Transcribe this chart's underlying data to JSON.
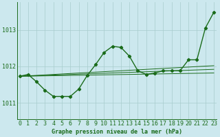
{
  "title": "Graphe pression niveau de la mer (hPa)",
  "background_color": "#cce8ee",
  "line_color": "#1a6b1a",
  "grid_color": "#a8cccc",
  "xlabel_fontsize": 6,
  "ylabel_fontsize": 6,
  "yticks": [
    1011,
    1012,
    1013
  ],
  "xticks": [
    0,
    1,
    2,
    3,
    4,
    5,
    6,
    7,
    8,
    9,
    10,
    11,
    12,
    13,
    14,
    15,
    16,
    17,
    18,
    19,
    20,
    21,
    22,
    23
  ],
  "ylim": [
    1010.55,
    1013.75
  ],
  "xlim": [
    -0.3,
    23.3
  ],
  "main_series": {
    "x": [
      0,
      1,
      2,
      3,
      4,
      5,
      6,
      7,
      8,
      9,
      10,
      11,
      12,
      13,
      14,
      15,
      16,
      17,
      18,
      19,
      20,
      21,
      22,
      23
    ],
    "y": [
      1011.73,
      1011.78,
      1011.58,
      1011.35,
      1011.18,
      1011.18,
      1011.18,
      1011.38,
      1011.75,
      1012.05,
      1012.38,
      1012.55,
      1012.52,
      1012.28,
      1011.88,
      1011.78,
      1011.82,
      1011.88,
      1011.88,
      1011.88,
      1012.18,
      1012.18,
      1013.05,
      1013.48
    ],
    "marker": "D",
    "markersize": 2.2,
    "linewidth": 1.0
  },
  "trend_lines": [
    {
      "x": [
        0,
        23
      ],
      "y": [
        1011.73,
        1012.02
      ],
      "linewidth": 0.7
    },
    {
      "x": [
        0,
        23
      ],
      "y": [
        1011.73,
        1011.92
      ],
      "linewidth": 0.7
    },
    {
      "x": [
        0,
        23
      ],
      "y": [
        1011.73,
        1011.82
      ],
      "linewidth": 0.7
    }
  ]
}
